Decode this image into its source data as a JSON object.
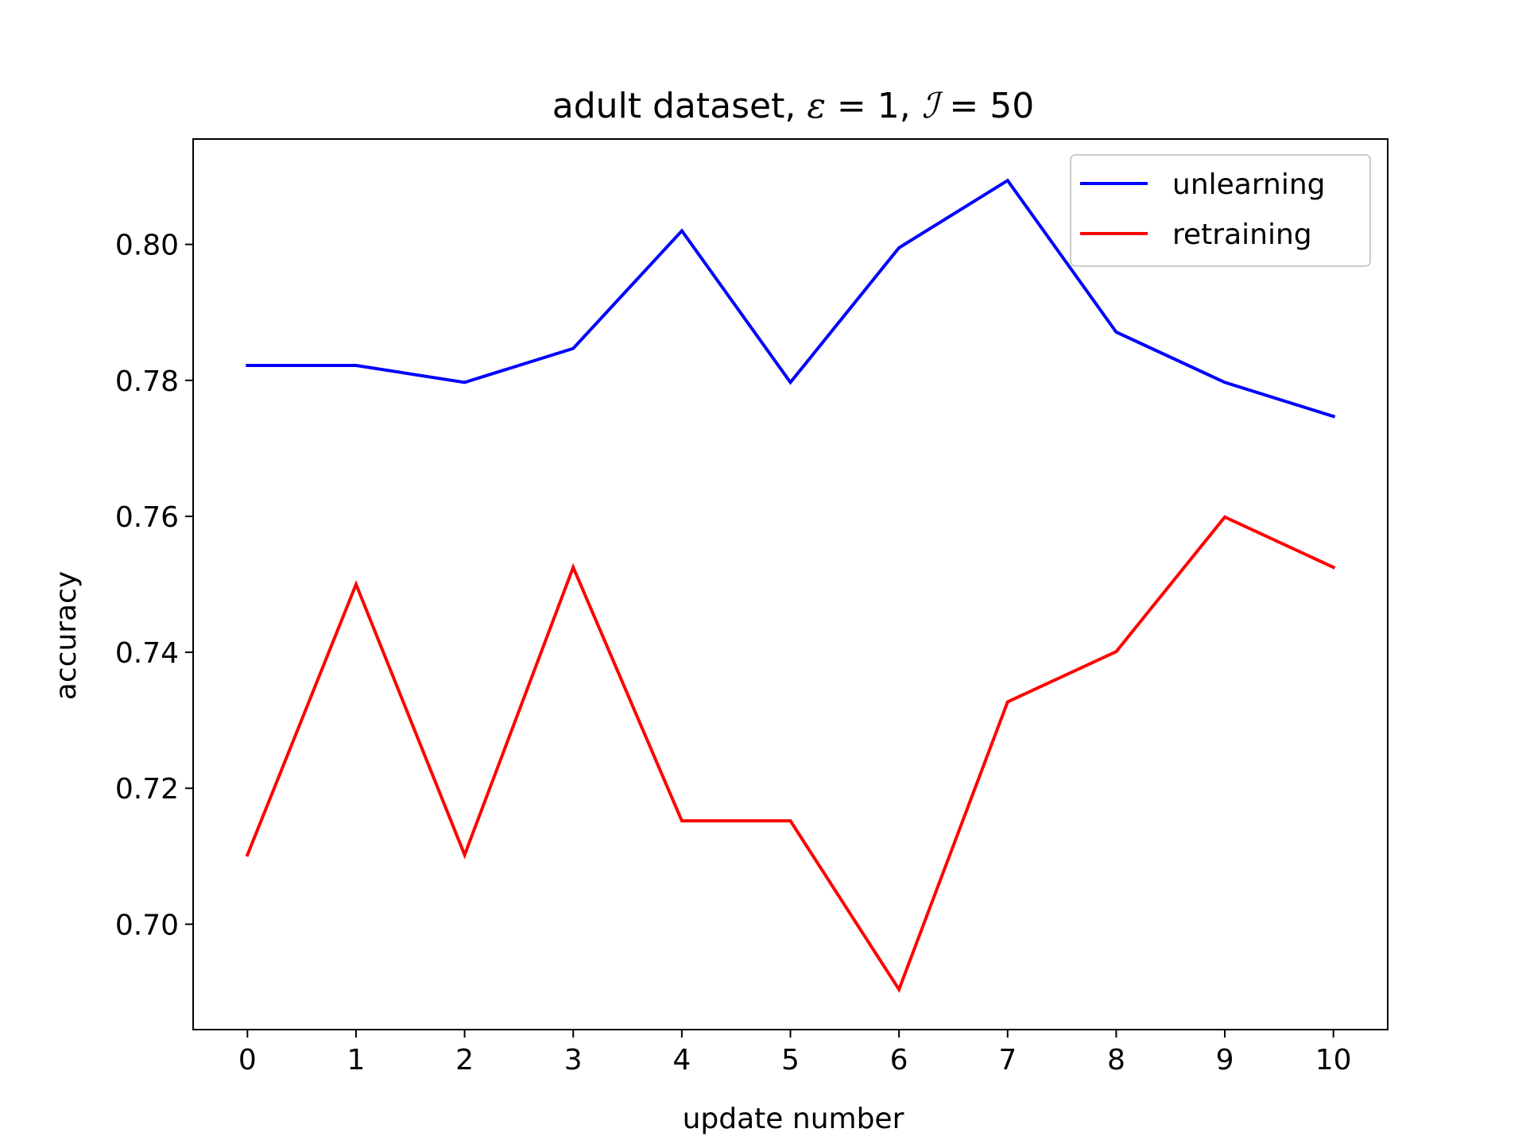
{
  "chart_data": {
    "type": "line",
    "title_prefix": "adult dataset, ",
    "title_eps_symbol": "ε",
    "title_eps_rest": " = 1, ",
    "title_i_symbol": "ℐ",
    "title_i_rest": " = 50",
    "xlabel": "update number",
    "ylabel": "accuracy",
    "x": [
      0,
      1,
      2,
      3,
      4,
      5,
      6,
      7,
      8,
      9,
      10
    ],
    "xlim": [
      -0.5,
      10.5
    ],
    "ylim": [
      0.6845,
      0.8155
    ],
    "xticks": [
      0,
      1,
      2,
      3,
      4,
      5,
      6,
      7,
      8,
      9,
      10
    ],
    "xtick_labels": [
      "0",
      "1",
      "2",
      "3",
      "4",
      "5",
      "6",
      "7",
      "8",
      "9",
      "10"
    ],
    "yticks": [
      0.7,
      0.72,
      0.74,
      0.76,
      0.78,
      0.8
    ],
    "ytick_labels": [
      "0.70",
      "0.72",
      "0.74",
      "0.76",
      "0.78",
      "0.80"
    ],
    "grid": false,
    "legend_position": "top-right",
    "series": [
      {
        "name": "unlearning",
        "color": "#0000ff",
        "values": [
          0.7822,
          0.7822,
          0.7797,
          0.7847,
          0.802,
          0.7797,
          0.7995,
          0.8094,
          0.7871,
          0.7797,
          0.7747
        ]
      },
      {
        "name": "retraining",
        "color": "#ff0000",
        "values": [
          0.7102,
          0.75,
          0.7102,
          0.7525,
          0.7152,
          0.7152,
          0.6904,
          0.7327,
          0.7401,
          0.7599,
          0.7525
        ]
      }
    ]
  }
}
